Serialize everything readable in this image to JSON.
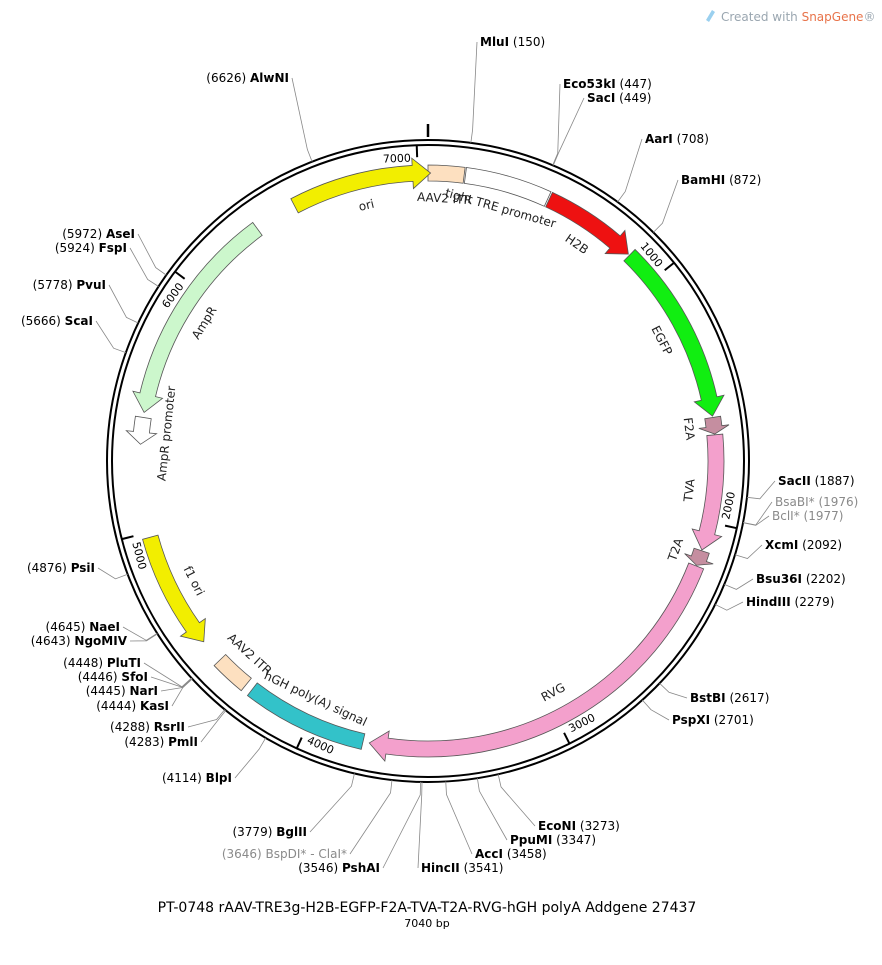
{
  "credit": {
    "prefix": "Created with ",
    "brand": "SnapGene",
    "suffix": "®"
  },
  "title": "PT-0748  rAAV-TRE3g-H2B-EGFP-F2A-TVA-T2A-RVG-hGH polyA  Addgene 27437",
  "subtitle": "7040 bp",
  "total_bp": 7040,
  "ticks": [
    {
      "bp": 1000,
      "label": "1000"
    },
    {
      "bp": 2000,
      "label": "2000"
    },
    {
      "bp": 3000,
      "label": "3000"
    },
    {
      "bp": 4000,
      "label": "4000"
    },
    {
      "bp": 5000,
      "label": "5000"
    },
    {
      "bp": 6000,
      "label": "6000"
    },
    {
      "bp": 7000,
      "label": "7000"
    }
  ],
  "sites": [
    {
      "name": "MluI",
      "pos": "(150)",
      "bp": 150,
      "gray": false
    },
    {
      "name": "Eco53kI",
      "pos": "(447)",
      "bp": 447,
      "gray": false
    },
    {
      "name": "SacI",
      "pos": "(449)",
      "bp": 449,
      "gray": false
    },
    {
      "name": "AarI",
      "pos": "(708)",
      "bp": 708,
      "gray": false
    },
    {
      "name": "BamHI",
      "pos": "(872)",
      "bp": 872,
      "gray": false
    },
    {
      "name": "SacII",
      "pos": "(1887)",
      "bp": 1887,
      "gray": false
    },
    {
      "name": "BsaBI*",
      "pos": "(1976)",
      "bp": 1976,
      "gray": true
    },
    {
      "name": "BclI*",
      "pos": "(1977)",
      "bp": 1977,
      "gray": true
    },
    {
      "name": "XcmI",
      "pos": "(2092)",
      "bp": 2092,
      "gray": false
    },
    {
      "name": "Bsu36I",
      "pos": "(2202)",
      "bp": 2202,
      "gray": false
    },
    {
      "name": "HindIII",
      "pos": "(2279)",
      "bp": 2279,
      "gray": false
    },
    {
      "name": "BstBI",
      "pos": "(2617)",
      "bp": 2617,
      "gray": false
    },
    {
      "name": "PspXI",
      "pos": "(2701)",
      "bp": 2701,
      "gray": false
    },
    {
      "name": "EcoNI",
      "pos": "(3273)",
      "bp": 3273,
      "gray": false
    },
    {
      "name": "PpuMI",
      "pos": "(3347)",
      "bp": 3347,
      "gray": false
    },
    {
      "name": "AccI",
      "pos": "(3458)",
      "bp": 3458,
      "gray": false
    },
    {
      "name": "HincII",
      "pos": "(3541)",
      "bp": 3541,
      "gray": false
    },
    {
      "name": "PshAI",
      "pos": "(3546)",
      "bp": 3546,
      "gray": false
    },
    {
      "name": "BspDI* - ClaI*",
      "pos": "(3646)",
      "bp": 3646,
      "gray": true
    },
    {
      "name": "BglII",
      "pos": "(3779)",
      "bp": 3779,
      "gray": false
    },
    {
      "name": "BlpI",
      "pos": "(4114)",
      "bp": 4114,
      "gray": false
    },
    {
      "name": "PmlI",
      "pos": "(4283)",
      "bp": 4283,
      "gray": false
    },
    {
      "name": "RsrII",
      "pos": "(4288)",
      "bp": 4288,
      "gray": false
    },
    {
      "name": "KasI",
      "pos": "(4444)",
      "bp": 4444,
      "gray": false
    },
    {
      "name": "NarI",
      "pos": "(4445)",
      "bp": 4445,
      "gray": false
    },
    {
      "name": "SfoI",
      "pos": "(4446)",
      "bp": 4446,
      "gray": false
    },
    {
      "name": "PluTI",
      "pos": "(4448)",
      "bp": 4448,
      "gray": false
    },
    {
      "name": "NgoMIV",
      "pos": "(4643)",
      "bp": 4643,
      "gray": false
    },
    {
      "name": "NaeI",
      "pos": "(4645)",
      "bp": 4645,
      "gray": false
    },
    {
      "name": "PsiI",
      "pos": "(4876)",
      "bp": 4876,
      "gray": false
    },
    {
      "name": "ScaI",
      "pos": "(5666)",
      "bp": 5666,
      "gray": false
    },
    {
      "name": "PvuI",
      "pos": "(5778)",
      "bp": 5778,
      "gray": false
    },
    {
      "name": "FspI",
      "pos": "(5924)",
      "bp": 5924,
      "gray": false
    },
    {
      "name": "AseI",
      "pos": "(5972)",
      "bp": 5972,
      "gray": false
    },
    {
      "name": "AlwNI",
      "pos": "(6626)",
      "bp": 6626,
      "gray": false
    }
  ],
  "features": [
    {
      "name": "AAV2 ITR",
      "start": 0,
      "end": 141,
      "type": "box",
      "color": "#fde0c0"
    },
    {
      "name": "tight TRE promoter",
      "start": 146,
      "end": 480,
      "type": "box",
      "color": "#ffffff"
    },
    {
      "name": "H2B",
      "start": 486,
      "end": 862,
      "type": "arrow",
      "color": "#ee1111"
    },
    {
      "name": "EGFP",
      "start": 868,
      "end": 1585,
      "type": "arrow",
      "color": "#11ee11"
    },
    {
      "name": "F2A",
      "start": 1590,
      "end": 1655,
      "type": "arrow",
      "color": "#c58ea0"
    },
    {
      "name": "TVA",
      "start": 1658,
      "end": 2112,
      "type": "arrow",
      "color": "#f3a0cc"
    },
    {
      "name": "T2A",
      "start": 2115,
      "end": 2175,
      "type": "arrow",
      "color": "#c58ea0"
    },
    {
      "name": "RVG",
      "start": 2178,
      "end": 3750,
      "type": "arrow",
      "color": "#f3a0cc"
    },
    {
      "name": "hGH poly(A) signal",
      "start": 3775,
      "end": 4255,
      "type": "box",
      "color": "#33c2c9"
    },
    {
      "name": "AAV2 ITR",
      "start": 4285,
      "end": 4425,
      "type": "box",
      "color": "#fde0c0"
    },
    {
      "name": "f1 ori",
      "start": 4520,
      "end": 4980,
      "type": "arrow_rev",
      "color": "#f2ee00"
    },
    {
      "name": "AmpR promoter",
      "start": 5345,
      "end": 5450,
      "type": "arrow_rev_small",
      "color": "#ffffff"
    },
    {
      "name": "AmpR",
      "start": 5470,
      "end": 6330,
      "type": "arrow_rev",
      "color": "#ccf7cc"
    },
    {
      "name": "ori",
      "start": 6500,
      "end": 7050,
      "type": "arrow",
      "color": "#f2ee00"
    }
  ]
}
